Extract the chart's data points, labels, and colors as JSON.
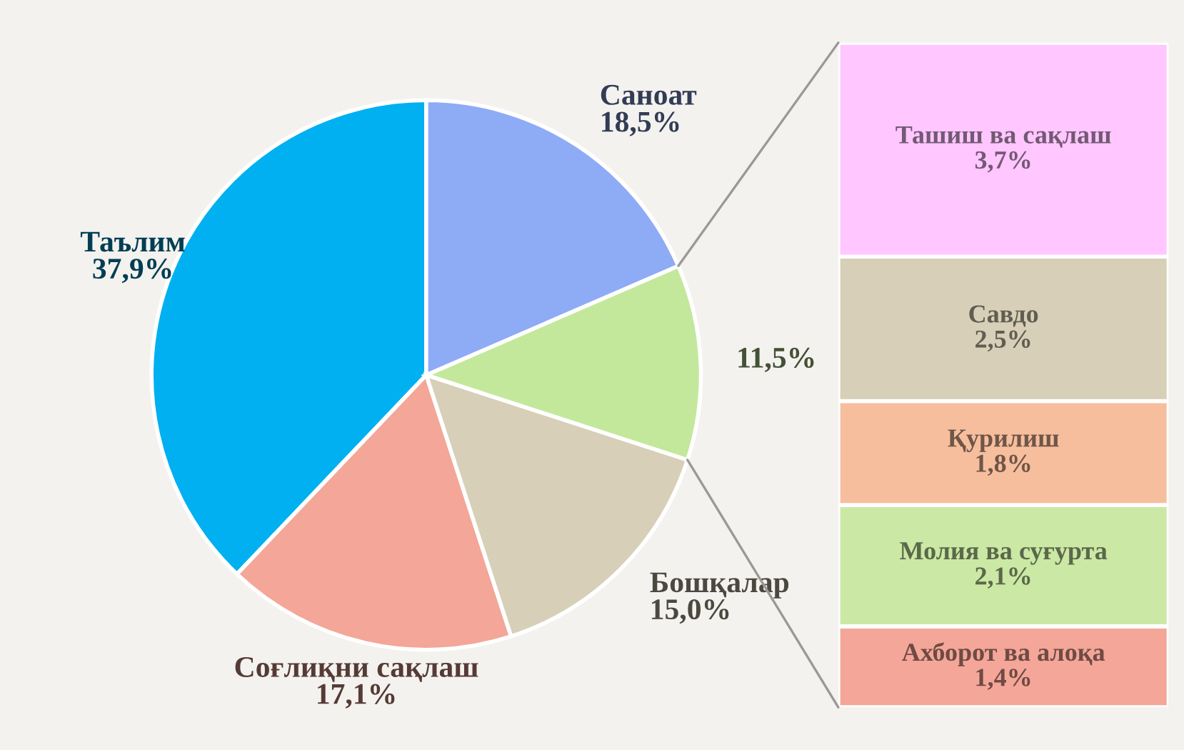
{
  "chart_data": [
    {
      "type": "pie",
      "categories": [
        "Таълим",
        "Соғлиқни сақлаш",
        "Бошқалар",
        null,
        "Саноат"
      ],
      "values": [
        37.9,
        17.1,
        15.0,
        11.5,
        18.5
      ],
      "colors": [
        "#00b0f0",
        "#f4a698",
        "#d7cfb7",
        "#c3e89c",
        "#8eabf5"
      ],
      "value_labels": [
        "37,9%",
        "17,1%",
        "15,0%",
        "11,5%",
        "18,5%"
      ]
    },
    {
      "type": "bar",
      "stacked": true,
      "categories": [
        null
      ],
      "data_labels": false,
      "series": [
        {
          "name": "Ахборот ва алоқа",
          "color": "#f4a698",
          "values": [
            1.4
          ],
          "value_labels": [
            "1,4%"
          ]
        },
        {
          "name": "Молия ва суғурта",
          "color": "#cbe8a4",
          "values": [
            2.1
          ],
          "value_labels": [
            "2,1%"
          ]
        },
        {
          "name": "Қурилиш",
          "color": "#f7be9e",
          "values": [
            1.8
          ],
          "value_labels": [
            "1,8%"
          ]
        },
        {
          "name": "Савдо",
          "color": "#d7cfb7",
          "values": [
            2.5
          ],
          "value_labels": [
            "2,5%"
          ]
        },
        {
          "name": "Ташиш ва сақлаш",
          "color": "#ffc6ff",
          "values": [
            3.7
          ],
          "value_labels": [
            "3,7%"
          ]
        }
      ]
    }
  ]
}
